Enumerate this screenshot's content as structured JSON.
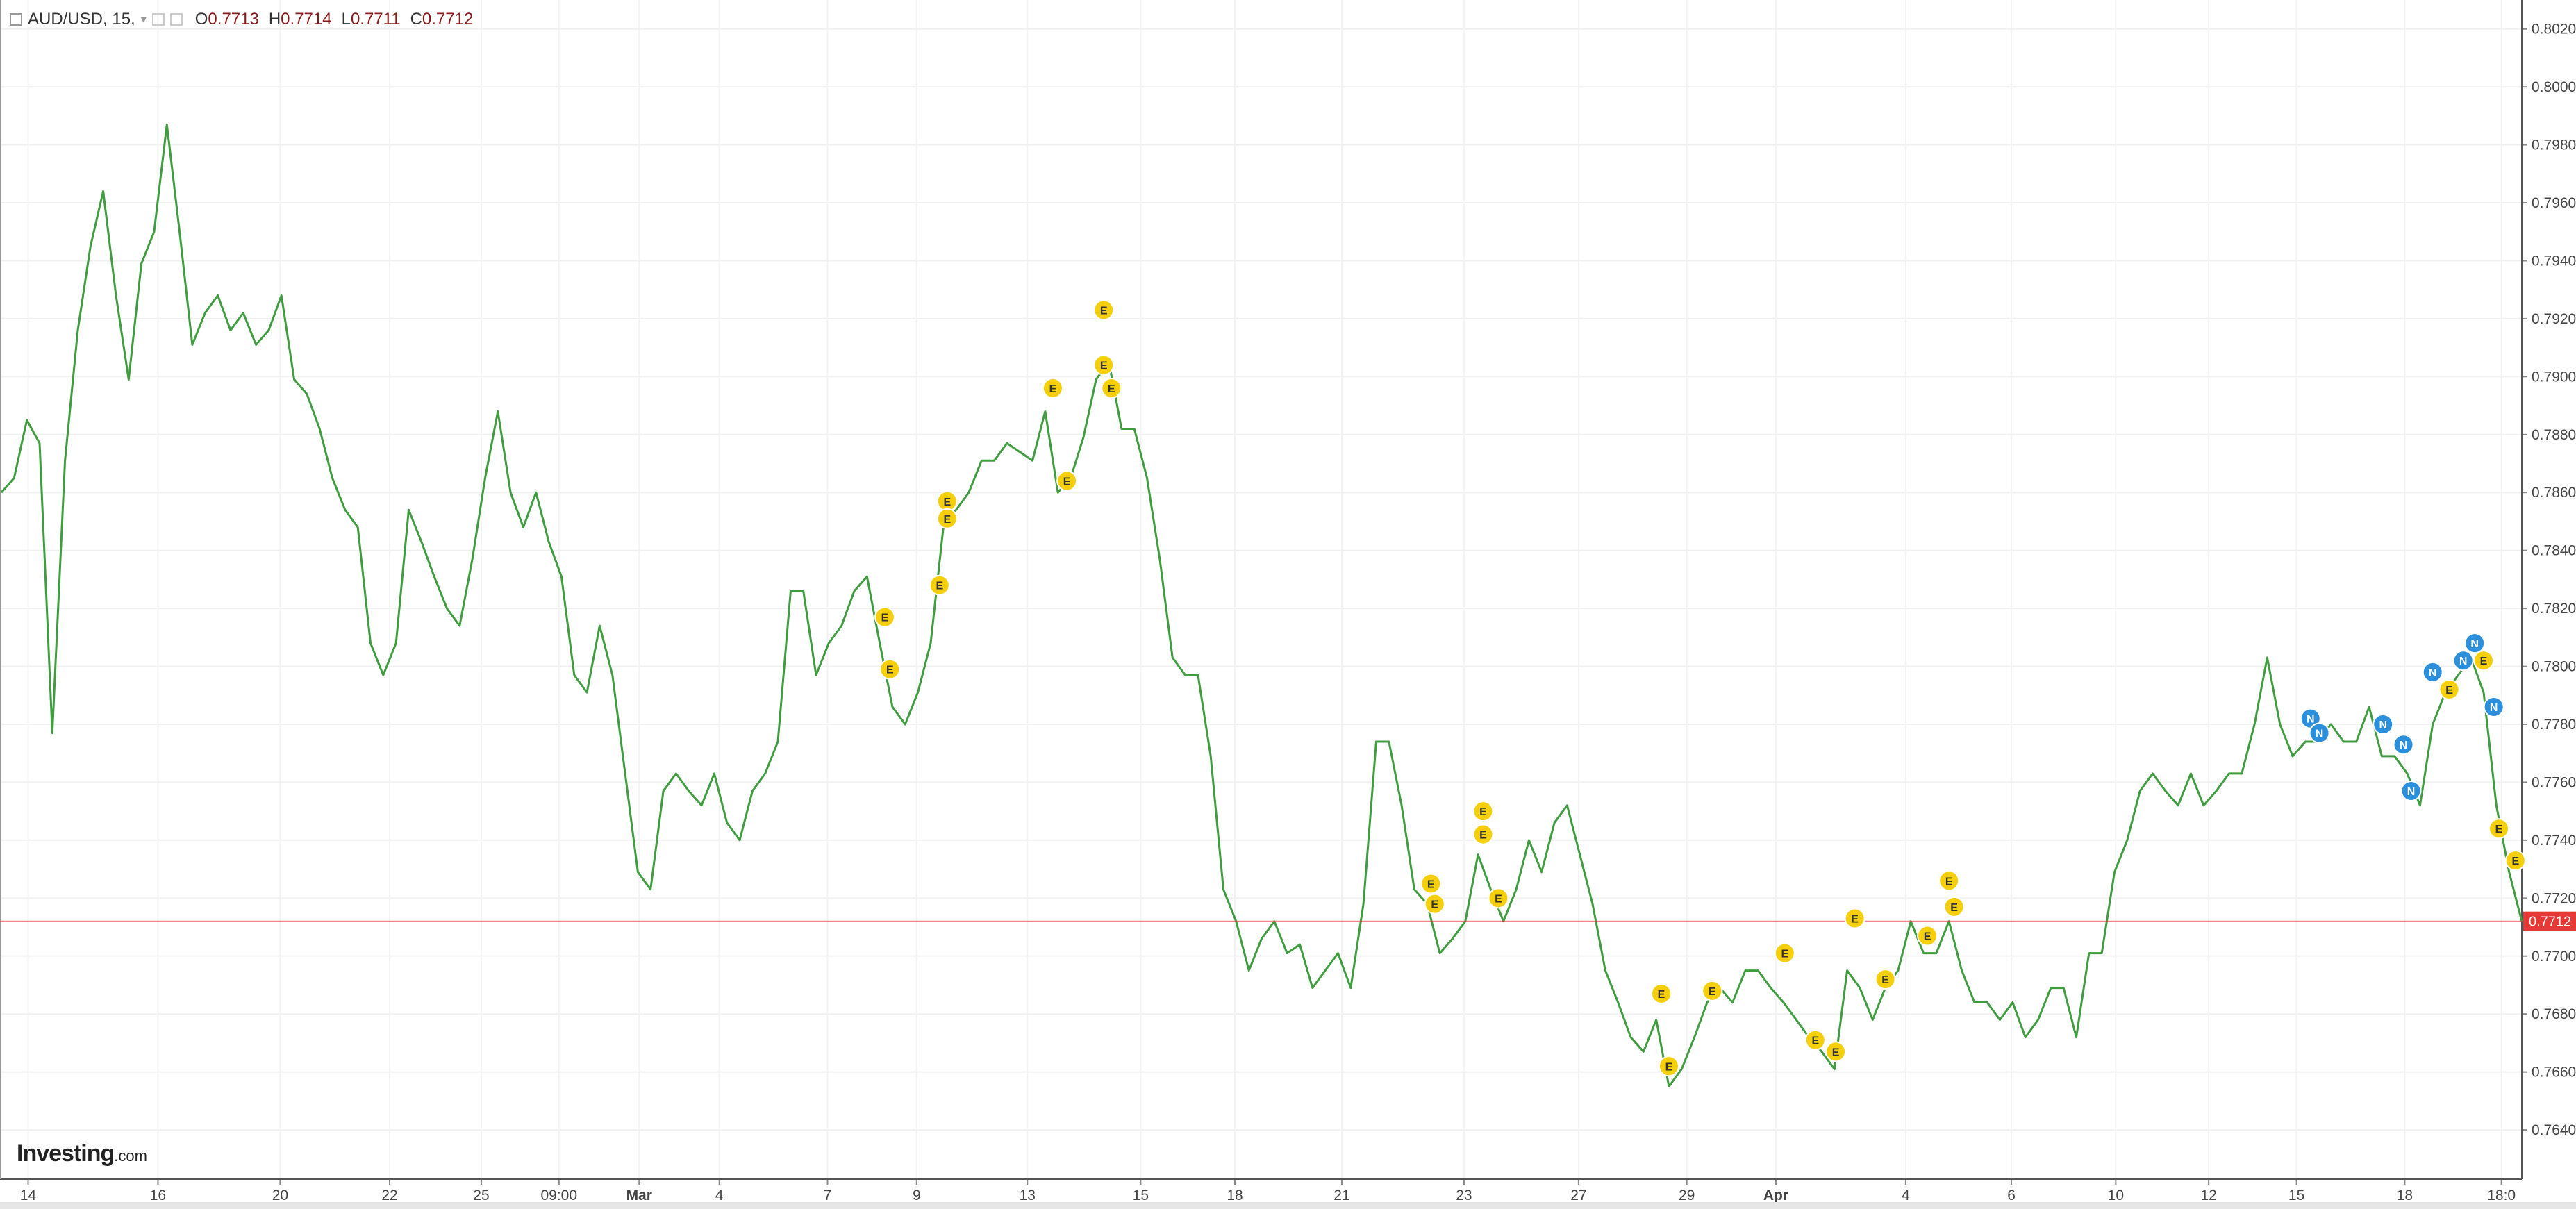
{
  "chart_data": {
    "type": "line",
    "title": "AUD/USD, 15,",
    "ohlc": [
      {
        "label": "O",
        "value": 0.7713
      },
      {
        "label": "H",
        "value": 0.7714
      },
      {
        "label": "L",
        "value": 0.7711
      },
      {
        "label": "C",
        "value": 0.7712
      }
    ],
    "color": "#3f9d3f",
    "values": [
      0.786,
      0.7865,
      0.7885,
      0.7877,
      0.7777,
      0.7871,
      0.7916,
      0.7945,
      0.7964,
      0.7928,
      0.7899,
      0.7939,
      0.795,
      0.7987,
      0.795,
      0.7911,
      0.7922,
      0.7928,
      0.7916,
      0.7922,
      0.7911,
      0.7916,
      0.7928,
      0.7899,
      0.7894,
      0.7882,
      0.7865,
      0.7854,
      0.7848,
      0.7808,
      0.7797,
      0.7808,
      0.7854,
      0.7843,
      0.7831,
      0.782,
      0.7814,
      0.7837,
      0.7865,
      0.7888,
      0.786,
      0.7848,
      0.786,
      0.7843,
      0.7831,
      0.7797,
      0.7791,
      0.7814,
      0.7797,
      0.7763,
      0.7729,
      0.7723,
      0.7757,
      0.7763,
      0.7757,
      0.7752,
      0.7763,
      0.7746,
      0.774,
      0.7757,
      0.7763,
      0.7774,
      0.7826,
      0.7826,
      0.7797,
      0.7808,
      0.7814,
      0.7826,
      0.7831,
      0.7808,
      0.7786,
      0.778,
      0.7791,
      0.7808,
      0.7848,
      0.7854,
      0.786,
      0.7871,
      0.7871,
      0.7877,
      0.7874,
      0.7871,
      0.7888,
      0.786,
      0.7865,
      0.7879,
      0.7899,
      0.7905,
      0.7882,
      0.7882,
      0.7865,
      0.7837,
      0.7803,
      0.7797,
      0.7797,
      0.7769,
      0.7723,
      0.7712,
      0.7695,
      0.7706,
      0.7712,
      0.7701,
      0.7704,
      0.7689,
      0.7695,
      0.7701,
      0.7689,
      0.7718,
      0.7774,
      0.7774,
      0.7752,
      0.7723,
      0.7718,
      0.7701,
      0.7706,
      0.7712,
      0.7735,
      0.7723,
      0.7712,
      0.7723,
      0.774,
      0.7729,
      0.7746,
      0.7752,
      0.7735,
      0.7718,
      0.7695,
      0.7684,
      0.7672,
      0.7667,
      0.7678,
      0.7655,
      0.7661,
      0.7672,
      0.7684,
      0.7689,
      0.7684,
      0.7695,
      0.7695,
      0.7689,
      0.7684,
      0.7678,
      0.7672,
      0.7667,
      0.7661,
      0.7695,
      0.7689,
      0.7678,
      0.7689,
      0.7695,
      0.7712,
      0.7701,
      0.7701,
      0.7712,
      0.7695,
      0.7684,
      0.7684,
      0.7678,
      0.7684,
      0.7672,
      0.7678,
      0.7689,
      0.7689,
      0.7672,
      0.7701,
      0.7701,
      0.7729,
      0.774,
      0.7757,
      0.7763,
      0.7757,
      0.7752,
      0.7763,
      0.7752,
      0.7757,
      0.7763,
      0.7763,
      0.778,
      0.7803,
      0.778,
      0.7769,
      0.7774,
      0.7774,
      0.778,
      0.7774,
      0.7774,
      0.7786,
      0.7769,
      0.7769,
      0.7763,
      0.7752,
      0.778,
      0.7791,
      0.7797,
      0.7803,
      0.7791,
      0.7752,
      0.7729,
      0.7712
    ],
    "xlim": [
      0,
      198
    ],
    "xticks": [
      {
        "value": 2.1,
        "label": "14"
      },
      {
        "value": 12.3,
        "label": "16"
      },
      {
        "value": 21.9,
        "label": "20"
      },
      {
        "value": 30.5,
        "label": "22"
      },
      {
        "value": 37.7,
        "label": "25"
      },
      {
        "value": 43.8,
        "label": "09:00"
      },
      {
        "value": 50.1,
        "label": "Mar"
      },
      {
        "value": 56.4,
        "label": "4"
      },
      {
        "value": 64.9,
        "label": "7"
      },
      {
        "value": 71.9,
        "label": "9"
      },
      {
        "value": 80.6,
        "label": "13"
      },
      {
        "value": 89.5,
        "label": "15"
      },
      {
        "value": 96.9,
        "label": "18"
      },
      {
        "value": 105.3,
        "label": "21"
      },
      {
        "value": 114.9,
        "label": "23"
      },
      {
        "value": 123.9,
        "label": "27"
      },
      {
        "value": 132.4,
        "label": "29"
      },
      {
        "value": 139.4,
        "label": "Apr"
      },
      {
        "value": 149.6,
        "label": "4"
      },
      {
        "value": 157.9,
        "label": "6"
      },
      {
        "value": 166.1,
        "label": "10"
      },
      {
        "value": 173.4,
        "label": "12"
      },
      {
        "value": 180.3,
        "label": "15"
      },
      {
        "value": 188.8,
        "label": "18"
      },
      {
        "value": 196.4,
        "label": "18:0"
      }
    ],
    "ylim": [
      0.7623,
      0.803
    ],
    "yticks": [
      {
        "value": 0.764,
        "label": "0.7640"
      },
      {
        "value": 0.766,
        "label": "0.7660"
      },
      {
        "value": 0.768,
        "label": "0.7680"
      },
      {
        "value": 0.77,
        "label": "0.7700"
      },
      {
        "value": 0.772,
        "label": "0.7720"
      },
      {
        "value": 0.774,
        "label": "0.7740"
      },
      {
        "value": 0.776,
        "label": "0.7760"
      },
      {
        "value": 0.778,
        "label": "0.7780"
      },
      {
        "value": 0.78,
        "label": "0.7800"
      },
      {
        "value": 0.782,
        "label": "0.7820"
      },
      {
        "value": 0.784,
        "label": "0.7840"
      },
      {
        "value": 0.786,
        "label": "0.7860"
      },
      {
        "value": 0.788,
        "label": "0.7880"
      },
      {
        "value": 0.79,
        "label": "0.7900"
      },
      {
        "value": 0.792,
        "label": "0.7920"
      },
      {
        "value": 0.794,
        "label": "0.7940"
      },
      {
        "value": 0.796,
        "label": "0.7960"
      },
      {
        "value": 0.798,
        "label": "0.7980"
      },
      {
        "value": 0.8,
        "label": "0.8000"
      },
      {
        "value": 0.802,
        "label": "0.8020"
      }
    ],
    "grid": true,
    "last_price": 0.7712,
    "last_price_color": "#e53935",
    "event_colors": {
      "E": "#f5cf0a",
      "N": "#2b8fdc"
    },
    "events": [
      {
        "label": "E",
        "x": 69.4,
        "y": 0.7817
      },
      {
        "label": "E",
        "x": 69.8,
        "y": 0.7799
      },
      {
        "label": "E",
        "x": 73.7,
        "y": 0.7828
      },
      {
        "label": "E",
        "x": 74.3,
        "y": 0.7857
      },
      {
        "label": "E",
        "x": 74.3,
        "y": 0.7851
      },
      {
        "label": "E",
        "x": 82.6,
        "y": 0.7896
      },
      {
        "label": "E",
        "x": 83.7,
        "y": 0.7864
      },
      {
        "label": "E",
        "x": 86.6,
        "y": 0.7923
      },
      {
        "label": "E",
        "x": 86.6,
        "y": 0.7904
      },
      {
        "label": "E",
        "x": 87.2,
        "y": 0.7896
      },
      {
        "label": "E",
        "x": 112.3,
        "y": 0.7725
      },
      {
        "label": "E",
        "x": 112.6,
        "y": 0.7718
      },
      {
        "label": "E",
        "x": 116.4,
        "y": 0.775
      },
      {
        "label": "E",
        "x": 116.4,
        "y": 0.7742
      },
      {
        "label": "E",
        "x": 117.6,
        "y": 0.772
      },
      {
        "label": "E",
        "x": 130.4,
        "y": 0.7687
      },
      {
        "label": "E",
        "x": 131,
        "y": 0.7662
      },
      {
        "label": "E",
        "x": 134.4,
        "y": 0.7688
      },
      {
        "label": "E",
        "x": 140.1,
        "y": 0.7701
      },
      {
        "label": "E",
        "x": 142.5,
        "y": 0.7671
      },
      {
        "label": "E",
        "x": 144.1,
        "y": 0.7667
      },
      {
        "label": "E",
        "x": 145.6,
        "y": 0.7713
      },
      {
        "label": "E",
        "x": 148,
        "y": 0.7692
      },
      {
        "label": "E",
        "x": 151.3,
        "y": 0.7707
      },
      {
        "label": "E",
        "x": 153,
        "y": 0.7726
      },
      {
        "label": "E",
        "x": 153.4,
        "y": 0.7717
      },
      {
        "label": "N",
        "x": 181.4,
        "y": 0.7782
      },
      {
        "label": "N",
        "x": 182.1,
        "y": 0.7777
      },
      {
        "label": "N",
        "x": 187.1,
        "y": 0.778
      },
      {
        "label": "N",
        "x": 188.7,
        "y": 0.7773
      },
      {
        "label": "N",
        "x": 189.3,
        "y": 0.7757
      },
      {
        "label": "N",
        "x": 191,
        "y": 0.7798
      },
      {
        "label": "E",
        "x": 192.3,
        "y": 0.7792
      },
      {
        "label": "N",
        "x": 193.4,
        "y": 0.7802
      },
      {
        "label": "N",
        "x": 194.3,
        "y": 0.7808
      },
      {
        "label": "E",
        "x": 195,
        "y": 0.7802
      },
      {
        "label": "N",
        "x": 195.8,
        "y": 0.7786
      },
      {
        "label": "E",
        "x": 196.2,
        "y": 0.7744
      },
      {
        "label": "E",
        "x": 197.5,
        "y": 0.7733
      }
    ],
    "watermark": {
      "brand": "Investing",
      "suffix": ".com"
    }
  }
}
